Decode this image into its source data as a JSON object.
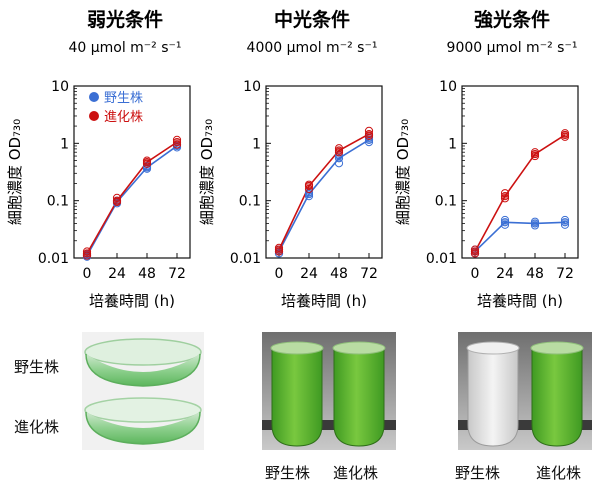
{
  "chart_data": [
    {
      "type": "line",
      "title": "弱光条件",
      "subtitle": "40 μmol m⁻² s⁻¹",
      "xlabel": "培養時間 (h)",
      "ylabel": "細胞濃度 OD₇₃₀",
      "yscale": "log",
      "ylim": [
        0.01,
        10
      ],
      "xticks": [
        "0",
        "24",
        "48",
        "72"
      ],
      "yticks": [
        "0.01",
        "0.1",
        "1",
        "10"
      ],
      "x": [
        0,
        24,
        48,
        72
      ],
      "legend_position": "top-left",
      "series": [
        {
          "name": "野生株",
          "color": "#3b6fd4",
          "values": [
            0.011,
            0.095,
            0.38,
            0.9
          ],
          "replicates": [
            [
              0.0105,
              0.0115
            ],
            [
              0.09,
              0.1
            ],
            [
              0.36,
              0.4
            ],
            [
              0.85,
              0.95
            ]
          ]
        },
        {
          "name": "進化株",
          "color": "#cc1111",
          "values": [
            0.012,
            0.1,
            0.47,
            1.05
          ],
          "replicates": [
            [
              0.011,
              0.013
            ],
            [
              0.095,
              0.112
            ],
            [
              0.44,
              0.5
            ],
            [
              0.95,
              1.15
            ]
          ]
        }
      ]
    },
    {
      "type": "line",
      "title": "中光条件",
      "subtitle": "4000 μmol m⁻² s⁻¹",
      "xlabel": "培養時間 (h)",
      "ylabel": "細胞濃度 OD₇₃₀",
      "yscale": "log",
      "ylim": [
        0.01,
        10
      ],
      "xticks": [
        "0",
        "24",
        "48",
        "72"
      ],
      "yticks": [
        "0.01",
        "0.1",
        "1",
        "10"
      ],
      "x": [
        0,
        24,
        48,
        72
      ],
      "series": [
        {
          "name": "野生株",
          "color": "#3b6fd4",
          "values": [
            0.013,
            0.13,
            0.55,
            1.15
          ],
          "replicates": [
            [
              0.012,
              0.014
            ],
            [
              0.12,
              0.14
            ],
            [
              0.45,
              0.62
            ],
            [
              1.05,
              1.25
            ]
          ]
        },
        {
          "name": "進化株",
          "color": "#cc1111",
          "values": [
            0.014,
            0.18,
            0.75,
            1.45
          ],
          "replicates": [
            [
              0.013,
              0.015
            ],
            [
              0.16,
              0.19
            ],
            [
              0.7,
              0.82
            ],
            [
              1.35,
              1.65
            ]
          ]
        }
      ]
    },
    {
      "type": "line",
      "title": "強光条件",
      "subtitle": "9000 μmol m⁻² s⁻¹",
      "xlabel": "培養時間 (h)",
      "ylabel": "細胞濃度 OD₇₃₀",
      "yscale": "log",
      "ylim": [
        0.01,
        10
      ],
      "xticks": [
        "0",
        "24",
        "48",
        "72"
      ],
      "yticks": [
        "0.01",
        "0.1",
        "1",
        "10"
      ],
      "x": [
        0,
        24,
        48,
        72
      ],
      "series": [
        {
          "name": "野生株",
          "color": "#3b6fd4",
          "values": [
            0.013,
            0.042,
            0.04,
            0.042
          ],
          "replicates": [
            [
              0.012,
              0.014
            ],
            [
              0.038,
              0.046
            ],
            [
              0.037,
              0.043
            ],
            [
              0.038,
              0.046
            ]
          ]
        },
        {
          "name": "進化株",
          "color": "#cc1111",
          "values": [
            0.013,
            0.12,
            0.65,
            1.4
          ],
          "replicates": [
            [
              0.012,
              0.014
            ],
            [
              0.11,
              0.135
            ],
            [
              0.6,
              0.7
            ],
            [
              1.3,
              1.5
            ]
          ]
        }
      ]
    }
  ],
  "photos": {
    "low": {
      "labels": [
        "野生株",
        "進化株"
      ]
    },
    "mid": {
      "labels": [
        "野生株",
        "進化株"
      ]
    },
    "high": {
      "labels": [
        "野生株",
        "進化株"
      ]
    }
  },
  "colors": {
    "wild": "#3b6fd4",
    "evolved": "#cc1111",
    "culture_green": "#5db832"
  }
}
